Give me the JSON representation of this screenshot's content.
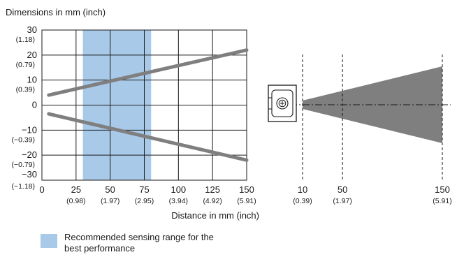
{
  "colors": {
    "recommended_range": "#a9c9e8",
    "beam_lines": "#7f7f7f",
    "grid": "#1a1a1a",
    "beam_fill": "#7f7f7f"
  },
  "diagram": {
    "sensor_icon": "light-grid-sensor-icon",
    "ticks": [
      {
        "x": 10,
        "main": "10",
        "sub": "(0.39)"
      },
      {
        "x": 50,
        "main": "50",
        "sub": "(1.97)"
      },
      {
        "x": 150,
        "main": "150",
        "sub": "(5.91)"
      }
    ]
  },
  "legend": {
    "text": "Recommended sensing range for the best performance"
  },
  "chart_data": {
    "type": "line",
    "title": "Dimensions in mm (inch)",
    "xlabel": "Distance in mm (inch)",
    "ylabel": "",
    "xlim": [
      0,
      150
    ],
    "ylim": [
      -30,
      30
    ],
    "grid": true,
    "x_ticks": [
      {
        "value": 0,
        "main": "0",
        "sub": ""
      },
      {
        "value": 25,
        "main": "25",
        "sub": "(0.98)"
      },
      {
        "value": 50,
        "main": "50",
        "sub": "(1.97)"
      },
      {
        "value": 75,
        "main": "75",
        "sub": "(2.95)"
      },
      {
        "value": 100,
        "main": "100",
        "sub": "(3.94)"
      },
      {
        "value": 125,
        "main": "125",
        "sub": "(4.92)"
      },
      {
        "value": 150,
        "main": "150",
        "sub": "(5.91)"
      }
    ],
    "y_ticks": [
      {
        "value": 30,
        "main": "30",
        "sub": "(1.18)"
      },
      {
        "value": 20,
        "main": "20",
        "sub": "(0.79)"
      },
      {
        "value": 10,
        "main": "10",
        "sub": "(0.39)"
      },
      {
        "value": 0,
        "main": "0",
        "sub": ""
      },
      {
        "value": -10,
        "main": "−10",
        "sub": "(−0.39)"
      },
      {
        "value": -20,
        "main": "−20",
        "sub": "(−0.79)"
      },
      {
        "value": -30,
        "main": "−30",
        "sub": "(−1.18)"
      }
    ],
    "recommended_range": [
      30,
      80
    ],
    "series": [
      {
        "values": [
          [
            5,
            4
          ],
          [
            150,
            22
          ]
        ]
      },
      {
        "values": [
          [
            5,
            -3.5
          ],
          [
            150,
            -22
          ]
        ]
      }
    ]
  }
}
